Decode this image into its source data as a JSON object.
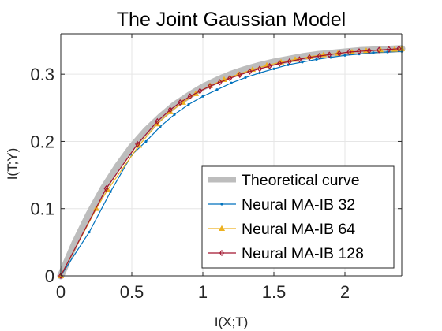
{
  "chart_data": {
    "type": "line",
    "title": "The Joint Gaussian Model",
    "xlabel": "I(X;T)",
    "ylabel": "I(T;Y)",
    "xlim": [
      0,
      2.4
    ],
    "ylim": [
      0,
      0.36
    ],
    "xticks": [
      0,
      0.5,
      1,
      1.5,
      2
    ],
    "xtick_labels": [
      "0",
      "0.5",
      "1",
      "1.5",
      "2"
    ],
    "yticks": [
      0,
      0.1,
      0.2,
      0.3
    ],
    "ytick_labels": [
      "0",
      "0.1",
      "0.2",
      "0.3"
    ],
    "grid": true,
    "legend_position": "bottom-right",
    "series": [
      {
        "name": "Theoretical curve",
        "color": "#bdbdbd",
        "marker": "none",
        "points": [
          [
            0,
            0
          ],
          [
            0.1,
            0.049
          ],
          [
            0.2,
            0.092
          ],
          [
            0.3,
            0.13
          ],
          [
            0.4,
            0.163
          ],
          [
            0.5,
            0.192
          ],
          [
            0.6,
            0.216
          ],
          [
            0.7,
            0.236
          ],
          [
            0.8,
            0.254
          ],
          [
            0.9,
            0.268
          ],
          [
            1.0,
            0.281
          ],
          [
            1.1,
            0.291
          ],
          [
            1.2,
            0.3
          ],
          [
            1.3,
            0.307
          ],
          [
            1.4,
            0.313
          ],
          [
            1.5,
            0.318
          ],
          [
            1.6,
            0.322
          ],
          [
            1.7,
            0.326
          ],
          [
            1.8,
            0.329
          ],
          [
            1.9,
            0.331
          ],
          [
            2.0,
            0.333
          ],
          [
            2.1,
            0.335
          ],
          [
            2.2,
            0.336
          ],
          [
            2.3,
            0.337
          ],
          [
            2.4,
            0.338
          ]
        ]
      },
      {
        "name": "Neural MA-IB 32",
        "color": "#0072bd",
        "marker": "point",
        "points": [
          [
            0,
            0
          ],
          [
            0.2,
            0.065
          ],
          [
            0.35,
            0.125
          ],
          [
            0.5,
            0.18
          ],
          [
            0.6,
            0.2
          ],
          [
            0.7,
            0.222
          ],
          [
            0.8,
            0.24
          ],
          [
            0.9,
            0.255
          ],
          [
            1.0,
            0.267
          ],
          [
            1.1,
            0.277
          ],
          [
            1.2,
            0.287
          ],
          [
            1.3,
            0.295
          ],
          [
            1.4,
            0.302
          ],
          [
            1.5,
            0.308
          ],
          [
            1.6,
            0.314
          ],
          [
            1.7,
            0.318
          ],
          [
            1.8,
            0.322
          ],
          [
            1.9,
            0.325
          ],
          [
            2.0,
            0.328
          ],
          [
            2.1,
            0.33
          ],
          [
            2.2,
            0.332
          ],
          [
            2.3,
            0.333
          ],
          [
            2.4,
            0.334
          ]
        ]
      },
      {
        "name": "Neural MA-IB 64",
        "color": "#edb120",
        "marker": "triangle",
        "points": [
          [
            0,
            0
          ],
          [
            0.25,
            0.1
          ],
          [
            0.33,
            0.128
          ],
          [
            0.55,
            0.194
          ],
          [
            0.68,
            0.226
          ],
          [
            0.77,
            0.244
          ],
          [
            0.86,
            0.258
          ],
          [
            0.95,
            0.271
          ],
          [
            1.05,
            0.283
          ],
          [
            1.15,
            0.292
          ],
          [
            1.25,
            0.3
          ],
          [
            1.35,
            0.307
          ],
          [
            1.45,
            0.313
          ],
          [
            1.55,
            0.318
          ],
          [
            1.65,
            0.322
          ],
          [
            1.75,
            0.326
          ],
          [
            1.85,
            0.329
          ],
          [
            1.95,
            0.331
          ],
          [
            2.05,
            0.333
          ],
          [
            2.15,
            0.335
          ],
          [
            2.25,
            0.336
          ],
          [
            2.35,
            0.337
          ],
          [
            2.4,
            0.338
          ]
        ]
      },
      {
        "name": "Neural MA-IB 128",
        "color": "#a2142f",
        "marker": "diamond",
        "points": [
          [
            0,
            0
          ],
          [
            0.32,
            0.13
          ],
          [
            0.54,
            0.196
          ],
          [
            0.68,
            0.23
          ],
          [
            0.77,
            0.247
          ],
          [
            0.84,
            0.258
          ],
          [
            0.91,
            0.267
          ],
          [
            0.98,
            0.275
          ],
          [
            1.05,
            0.282
          ],
          [
            1.12,
            0.288
          ],
          [
            1.19,
            0.294
          ],
          [
            1.26,
            0.299
          ],
          [
            1.33,
            0.304
          ],
          [
            1.4,
            0.308
          ],
          [
            1.47,
            0.312
          ],
          [
            1.54,
            0.316
          ],
          [
            1.61,
            0.319
          ],
          [
            1.68,
            0.322
          ],
          [
            1.75,
            0.325
          ],
          [
            1.82,
            0.327
          ],
          [
            1.89,
            0.329
          ],
          [
            1.96,
            0.331
          ],
          [
            2.03,
            0.333
          ],
          [
            2.1,
            0.334
          ],
          [
            2.17,
            0.335
          ],
          [
            2.24,
            0.336
          ],
          [
            2.31,
            0.337
          ],
          [
            2.38,
            0.338
          ]
        ]
      }
    ]
  }
}
